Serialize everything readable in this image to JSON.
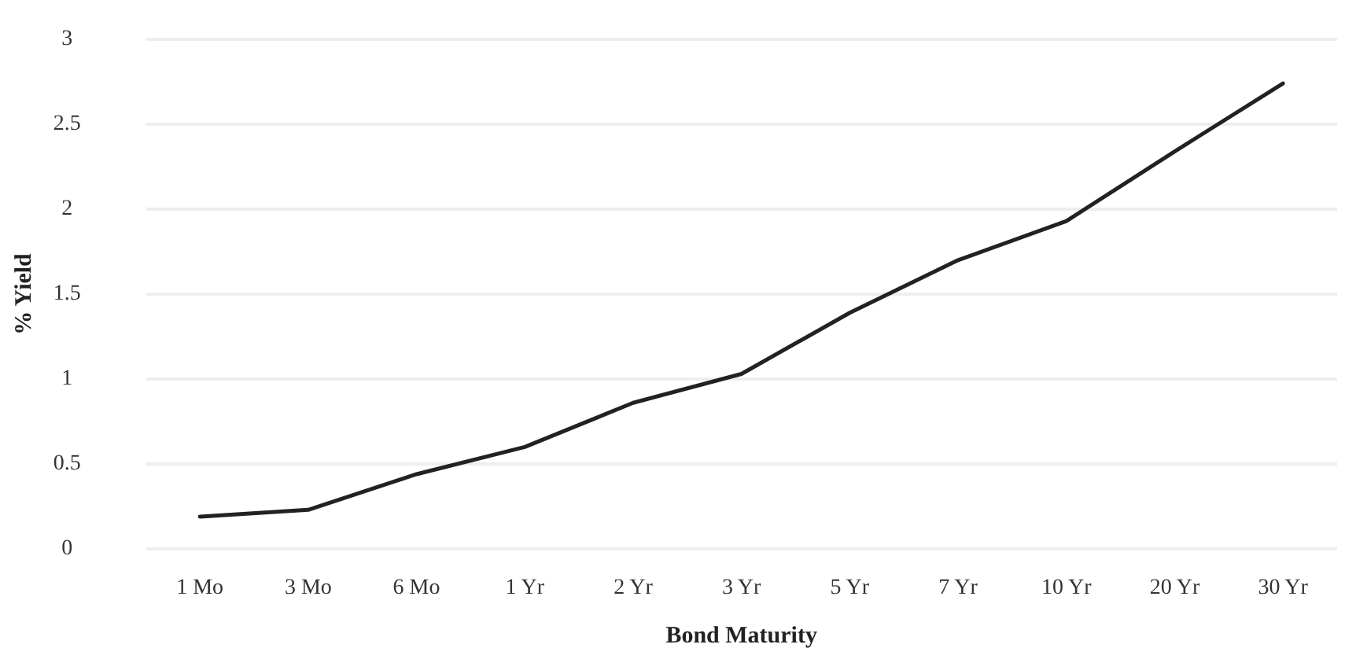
{
  "chart_data": {
    "type": "line",
    "xlabel": "Bond Maturity",
    "ylabel": "% Yield",
    "categories": [
      "1 Mo",
      "3 Mo",
      "6 Mo",
      "1 Yr",
      "2 Yr",
      "3 Yr",
      "5 Yr",
      "7 Yr",
      "10 Yr",
      "20 Yr",
      "30 Yr"
    ],
    "series": [
      {
        "color": "#222222",
        "values": [
          0.19,
          0.23,
          0.44,
          0.6,
          0.86,
          1.03,
          1.39,
          1.7,
          1.93,
          2.34,
          2.74
        ]
      }
    ],
    "ylim": [
      0,
      3
    ],
    "yticks": [
      0,
      0.5,
      1,
      1.5,
      2,
      2.5,
      3
    ],
    "grid": "y",
    "marker": "none",
    "line_style": "solid"
  }
}
